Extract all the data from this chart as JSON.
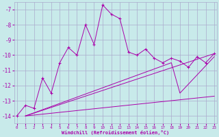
{
  "xlabel": "Windchill (Refroidissement éolien,°C)",
  "bg_color": "#c8eaea",
  "grid_color": "#aaaacc",
  "line_color": "#aa00aa",
  "marker": "+",
  "main_x": [
    0,
    1,
    2,
    3,
    4,
    5,
    6,
    7,
    8,
    9,
    10,
    11,
    12,
    13,
    14,
    15,
    16,
    17,
    18,
    19,
    20,
    21,
    22,
    23
  ],
  "main_y": [
    -14,
    -13.3,
    -13.5,
    -11.5,
    -12.5,
    -10.5,
    -9.5,
    -10.0,
    -8.0,
    -9.3,
    -6.7,
    -7.3,
    -7.6,
    -9.8,
    -10.0,
    -9.6,
    -10.2,
    -10.5,
    -10.2,
    -10.4,
    -10.8,
    -10.1,
    -10.5,
    -9.9
  ],
  "line2_x": [
    1,
    23
  ],
  "line2_y": [
    -14,
    -9.9
  ],
  "line3_x": [
    1,
    23
  ],
  "line3_y": [
    -14,
    -12.7
  ],
  "line4_x": [
    1,
    18,
    19,
    23
  ],
  "line4_y": [
    -14,
    -10.5,
    -12.5,
    -10.1
  ],
  "xlim": [
    -0.3,
    23.3
  ],
  "ylim": [
    -14.5,
    -6.5
  ],
  "yticks": [
    -14,
    -13,
    -12,
    -11,
    -10,
    -9,
    -8,
    -7
  ],
  "xticks": [
    0,
    1,
    2,
    3,
    4,
    5,
    6,
    7,
    8,
    9,
    10,
    11,
    12,
    13,
    14,
    15,
    16,
    17,
    18,
    19,
    20,
    21,
    22,
    23
  ]
}
